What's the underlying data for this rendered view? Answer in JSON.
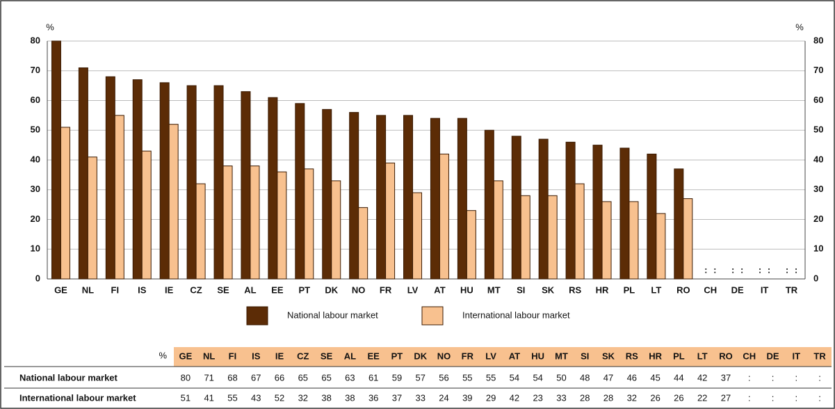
{
  "chart_data": {
    "type": "bar",
    "y_unit": "%",
    "missing_label": ":",
    "categories": [
      "GE",
      "NL",
      "FI",
      "IS",
      "IE",
      "CZ",
      "SE",
      "AL",
      "EE",
      "PT",
      "DK",
      "NO",
      "FR",
      "LV",
      "AT",
      "HU",
      "MT",
      "SI",
      "SK",
      "RS",
      "HR",
      "PL",
      "LT",
      "RO",
      "CH",
      "DE",
      "IT",
      "TR"
    ],
    "series": [
      {
        "name": "National labour market",
        "color": "#5c2c06",
        "values": [
          80,
          71,
          68,
          67,
          66,
          65,
          65,
          63,
          61,
          59,
          57,
          56,
          55,
          55,
          54,
          54,
          50,
          48,
          47,
          46,
          45,
          44,
          42,
          37,
          null,
          null,
          null,
          null
        ]
      },
      {
        "name": "International labour market",
        "color": "#f8c18f",
        "values": [
          51,
          41,
          55,
          43,
          52,
          32,
          38,
          38,
          36,
          37,
          33,
          24,
          39,
          29,
          42,
          23,
          33,
          28,
          28,
          32,
          26,
          26,
          22,
          27,
          null,
          null,
          null,
          null
        ]
      }
    ],
    "ylim": [
      0,
      80
    ],
    "yticks": [
      0,
      10,
      20,
      30,
      40,
      50,
      60,
      70,
      80
    ],
    "grid": true
  }
}
